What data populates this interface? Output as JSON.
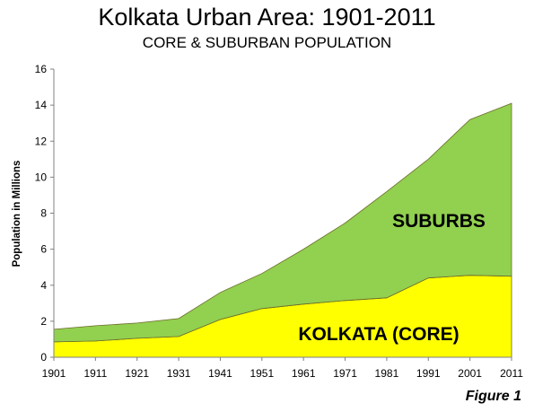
{
  "chart_data": {
    "type": "area",
    "title": "Kolkata Urban Area: 1901-2011",
    "subtitle": "CORE & SUBURBAN POPULATION",
    "xlabel": "",
    "ylabel": "Population in Millions",
    "ylim": [
      0,
      16
    ],
    "yticks": [
      0,
      2,
      4,
      6,
      8,
      10,
      12,
      14,
      16
    ],
    "categories": [
      "1901",
      "1911",
      "1921",
      "1931",
      "1941",
      "1951",
      "1961",
      "1971",
      "1981",
      "1991",
      "2001",
      "2011"
    ],
    "stacked": true,
    "grid": false,
    "series": [
      {
        "name": "KOLKATA (CORE)",
        "color": "#ffff00",
        "values": [
          0.85,
          0.9,
          1.05,
          1.15,
          2.1,
          2.7,
          2.95,
          3.15,
          3.3,
          4.4,
          4.55,
          4.5
        ]
      },
      {
        "name": "SUBURBS",
        "color": "#92d050",
        "values": [
          0.7,
          0.85,
          0.85,
          1.0,
          1.5,
          1.95,
          3.05,
          4.3,
          5.9,
          6.6,
          8.65,
          9.6
        ]
      }
    ],
    "annotations": [
      {
        "text": "SUBURBS",
        "series": "SUBURBS"
      },
      {
        "text": "KOLKATA (CORE)",
        "series": "KOLKATA (CORE)"
      }
    ]
  },
  "figure_label": "Figure 1"
}
